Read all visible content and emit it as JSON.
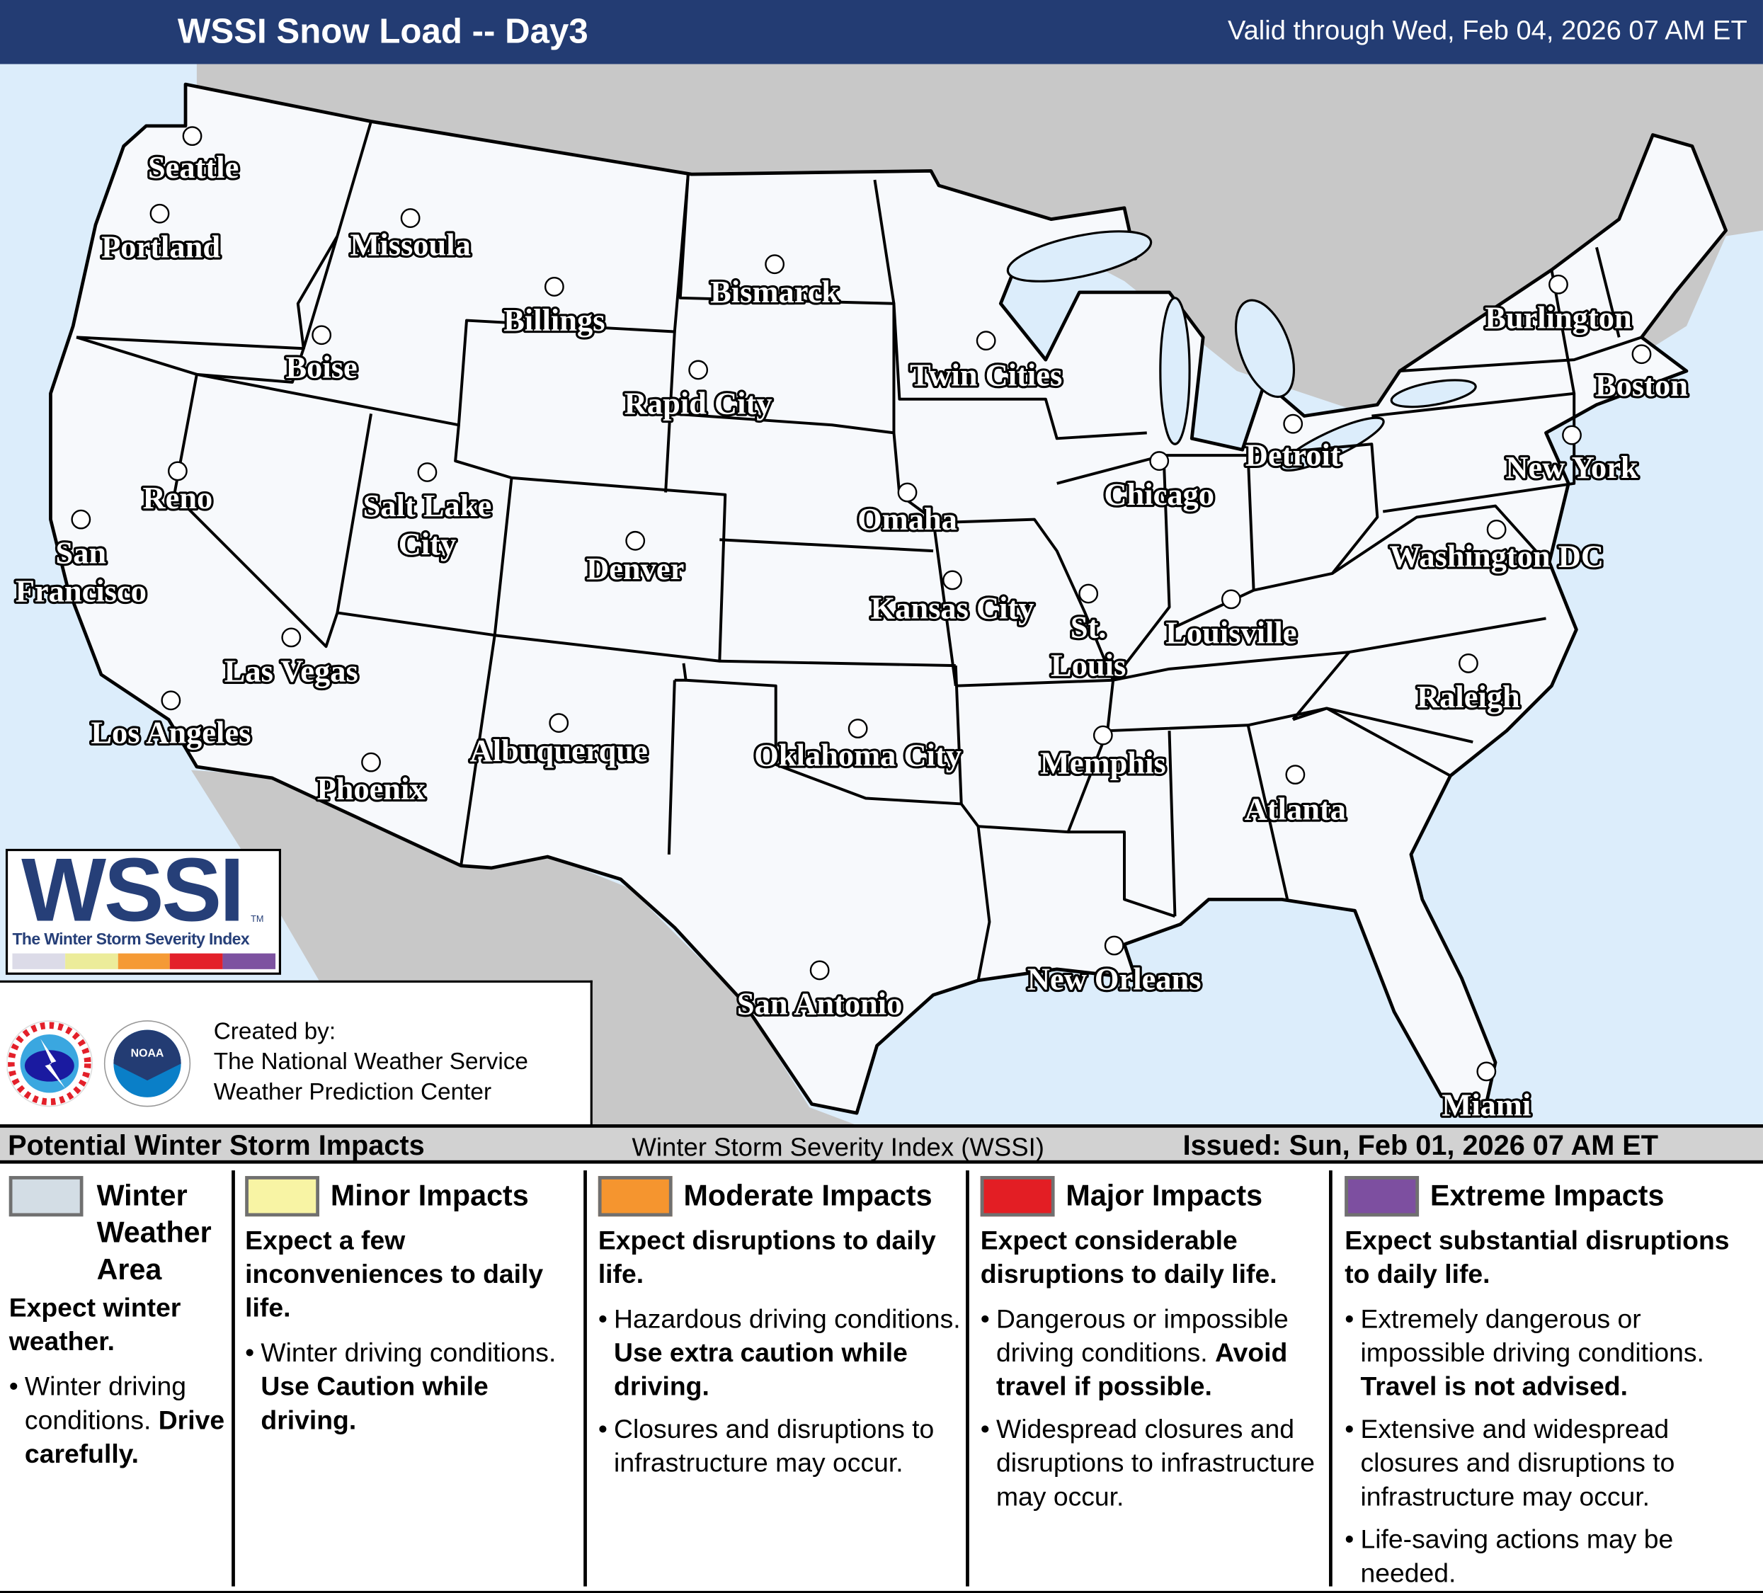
{
  "header": {
    "title": "WSSI Snow Load -- Day3",
    "valid": "Valid through Wed, Feb 04, 2026 07 AM ET"
  },
  "map": {
    "colors": {
      "ocean": "#dcedfb",
      "foreign_land": "#c8c8c8",
      "us_land": "#f7f9fc",
      "borders": "#000000"
    },
    "cities": [
      {
        "name": "Seattle",
        "lines": [
          "Seattle"
        ]
      },
      {
        "name": "Portland",
        "lines": [
          "Portland"
        ]
      },
      {
        "name": "Missoula",
        "lines": [
          "Missoula"
        ]
      },
      {
        "name": "Billings",
        "lines": [
          "Billings"
        ]
      },
      {
        "name": "Bismarck",
        "lines": [
          "Bismarck"
        ]
      },
      {
        "name": "Boise",
        "lines": [
          "Boise"
        ]
      },
      {
        "name": "Rapid City",
        "lines": [
          "Rapid City"
        ]
      },
      {
        "name": "Twin Cities",
        "lines": [
          "Twin Cities"
        ]
      },
      {
        "name": "Burlington",
        "lines": [
          "Burlington"
        ]
      },
      {
        "name": "Boston",
        "lines": [
          "Boston"
        ]
      },
      {
        "name": "Detroit",
        "lines": [
          "Detroit"
        ]
      },
      {
        "name": "New York",
        "lines": [
          "New York"
        ]
      },
      {
        "name": "Chicago",
        "lines": [
          "Chicago"
        ]
      },
      {
        "name": "Reno",
        "lines": [
          "Reno"
        ]
      },
      {
        "name": "Salt Lake City",
        "lines": [
          "Salt Lake",
          "City"
        ]
      },
      {
        "name": "Omaha",
        "lines": [
          "Omaha"
        ]
      },
      {
        "name": "Denver",
        "lines": [
          "Denver"
        ]
      },
      {
        "name": "Washington DC",
        "lines": [
          "Washington DC"
        ]
      },
      {
        "name": "San Francisco",
        "lines": [
          "San",
          "Francisco"
        ]
      },
      {
        "name": "Kansas City",
        "lines": [
          "Kansas City"
        ]
      },
      {
        "name": "St. Louis",
        "lines": [
          "St.",
          "Louis"
        ]
      },
      {
        "name": "Louisville",
        "lines": [
          "Louisville"
        ]
      },
      {
        "name": "Las Vegas",
        "lines": [
          "Las Vegas"
        ]
      },
      {
        "name": "Raleigh",
        "lines": [
          "Raleigh"
        ]
      },
      {
        "name": "Los Angeles",
        "lines": [
          "Los Angeles"
        ]
      },
      {
        "name": "Albuquerque",
        "lines": [
          "Albuquerque"
        ]
      },
      {
        "name": "Oklahoma City",
        "lines": [
          "Oklahoma City"
        ]
      },
      {
        "name": "Memphis",
        "lines": [
          "Memphis"
        ]
      },
      {
        "name": "Phoenix",
        "lines": [
          "Phoenix"
        ]
      },
      {
        "name": "Atlanta",
        "lines": [
          "Atlanta"
        ]
      },
      {
        "name": "New Orleans",
        "lines": [
          "New Orleans"
        ]
      },
      {
        "name": "San Antonio",
        "lines": [
          "San Antonio"
        ]
      },
      {
        "name": "Miami",
        "lines": [
          "Miami"
        ]
      }
    ]
  },
  "logo": {
    "wordmark": "WSSI",
    "tm": "TM",
    "subtitle": "The Winter Storm Severity Index",
    "strip_colors": [
      "#dcdbe8",
      "#ecec9a",
      "#f59a35",
      "#e3202a",
      "#7d52a0"
    ]
  },
  "credits": {
    "line1": "Created by:",
    "line2": "The National Weather Service",
    "line3": "Weather Prediction Center",
    "nws_logo_text": "NATIONAL WEATHER SERVICE",
    "noaa_logo_text": "NOAA"
  },
  "legend": {
    "heading": "Potential Winter Storm Impacts",
    "center": "Winter Storm Severity Index (WSSI)",
    "issued": "Issued: Sun, Feb 01, 2026 07 AM ET",
    "categories": [
      {
        "title": "Winter Weather Area",
        "color": "#d3dde5",
        "subtitle": "Expect winter weather.",
        "bullets": [
          {
            "text": "Winter driving conditions. ",
            "bold": "Drive carefully."
          }
        ]
      },
      {
        "title": "Minor Impacts",
        "color": "#f8f4a4",
        "subtitle": "Expect a few inconveniences to daily life.",
        "bullets": [
          {
            "text": "Winter driving conditions. ",
            "bold": "Use Caution while driving."
          }
        ]
      },
      {
        "title": "Moderate Impacts",
        "color": "#f5952f",
        "subtitle": "Expect disruptions to daily life.",
        "bullets": [
          {
            "text": "Hazardous driving conditions. ",
            "bold": "Use extra caution while driving."
          },
          {
            "text": "Closures and disruptions to infrastructure may occur."
          }
        ]
      },
      {
        "title": "Major Impacts",
        "color": "#e31e24",
        "subtitle": "Expect considerable disruptions to daily life.",
        "bullets": [
          {
            "text": "Dangerous or impossible driving conditions. ",
            "bold": "Avoid travel if possible."
          },
          {
            "text": "Widespread closures and disruptions to infrastructure may occur."
          }
        ]
      },
      {
        "title": "Extreme Impacts",
        "color": "#7d4fa0",
        "subtitle": "Expect substantial disruptions to daily life.",
        "bullets": [
          {
            "text": "Extremely dangerous or impossible driving conditions. ",
            "bold": "Travel is not advised."
          },
          {
            "text": "Extensive and widespread closures and disruptions to infrastructure may occur."
          },
          {
            "text": "Life-saving actions may be needed."
          }
        ]
      }
    ]
  }
}
